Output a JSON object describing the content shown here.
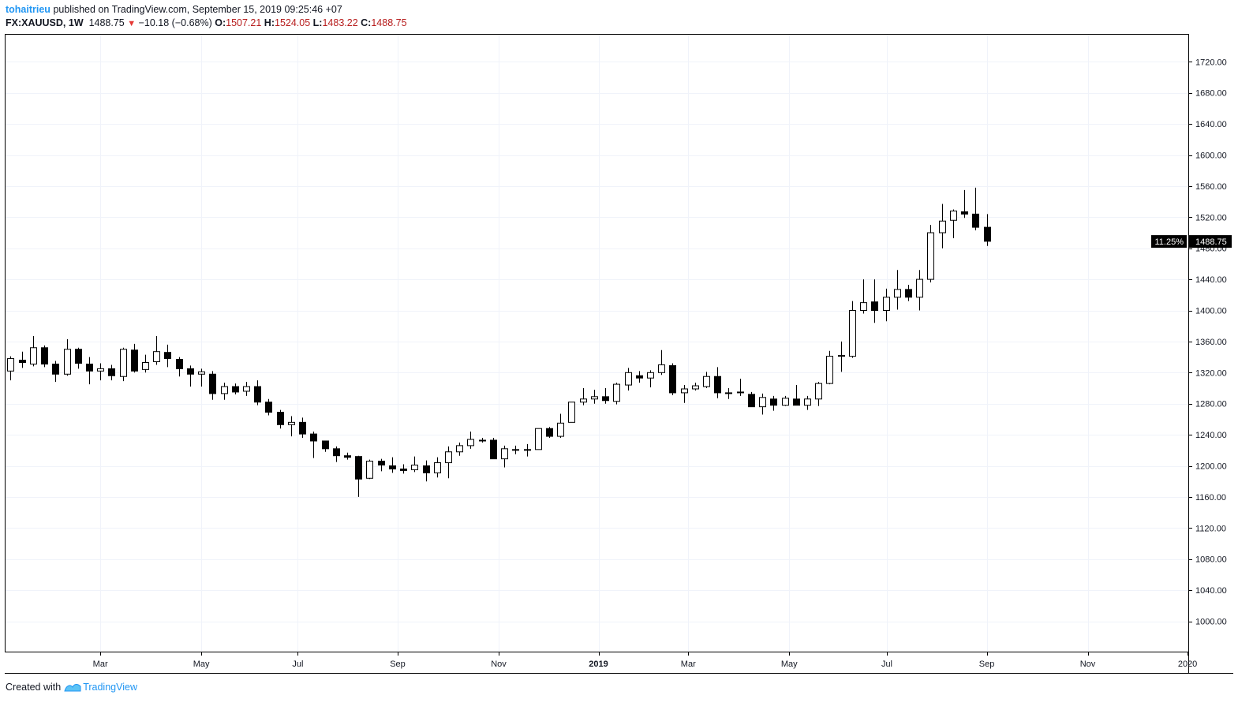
{
  "header": {
    "author": "tohaitrieu",
    "published": "published on TradingView.com, September 15, 2019 09:25:46 +07",
    "symbol": "FX:XAUUSD, 1W",
    "last": "1488.75",
    "change_arrow": "▼",
    "change": "−10.18 (−0.68%)",
    "o_label": "O:",
    "o": "1507.21",
    "h_label": "H:",
    "h": "1524.05",
    "l_label": "L:",
    "l": "1483.22",
    "c_label": "C:",
    "c": "1488.75"
  },
  "footer": {
    "created": "Created with",
    "brand": "TradingView"
  },
  "colors": {
    "up_fill": "#ffffff",
    "down_fill": "#000000",
    "wick": "#000000",
    "grid": "#f0f3fa",
    "author": "#2196f3",
    "ohlc_value": "#b71c1c",
    "price_label_bg": "#000000"
  },
  "chart_data": {
    "type": "candlestick",
    "interval": "1W",
    "ylim": [
      960,
      1760
    ],
    "yticks": [
      1000,
      1040,
      1080,
      1120,
      1160,
      1200,
      1240,
      1280,
      1320,
      1360,
      1400,
      1440,
      1480,
      1520,
      1560,
      1600,
      1640,
      1680,
      1720
    ],
    "ytick_labels": [
      "1000.00",
      "1040.00",
      "1080.00",
      "1120.00",
      "1160.00",
      "1200.00",
      "1240.00",
      "1280.00",
      "1320.00",
      "1360.00",
      "1400.00",
      "1440.00",
      "1480.00",
      "1520.00",
      "1560.00",
      "1600.00",
      "1640.00",
      "1680.00",
      "1720.00"
    ],
    "xticks": [
      {
        "label": "Mar",
        "week": 8,
        "bold": false
      },
      {
        "label": "May",
        "week": 17,
        "bold": false
      },
      {
        "label": "Jul",
        "week": 25.6,
        "bold": false
      },
      {
        "label": "Sep",
        "week": 34.5,
        "bold": false
      },
      {
        "label": "Nov",
        "week": 43.5,
        "bold": false
      },
      {
        "label": "2019",
        "week": 52.4,
        "bold": true
      },
      {
        "label": "Mar",
        "week": 60.4,
        "bold": false
      },
      {
        "label": "May",
        "week": 69.4,
        "bold": false
      },
      {
        "label": "Jul",
        "week": 78.1,
        "bold": false
      },
      {
        "label": "Sep",
        "week": 87,
        "bold": false
      },
      {
        "label": "Nov",
        "week": 96,
        "bold": false
      },
      {
        "label": "2020",
        "week": 104.9,
        "bold": false
      }
    ],
    "last_price": {
      "value": 1488.75,
      "label": "1488.75",
      "pct": "11.25%"
    },
    "candles": [
      [
        1322,
        1341,
        1310,
        1338
      ],
      [
        1336,
        1347,
        1326,
        1333
      ],
      [
        1331,
        1367,
        1328,
        1352
      ],
      [
        1352,
        1355,
        1327,
        1331
      ],
      [
        1331,
        1335,
        1308,
        1318
      ],
      [
        1318,
        1363,
        1316,
        1350
      ],
      [
        1350,
        1352,
        1325,
        1332
      ],
      [
        1331,
        1340,
        1305,
        1322
      ],
      [
        1322,
        1332,
        1310,
        1325
      ],
      [
        1325,
        1330,
        1310,
        1316
      ],
      [
        1315,
        1352,
        1309,
        1350
      ],
      [
        1349,
        1357,
        1320,
        1322
      ],
      [
        1324,
        1343,
        1320,
        1333
      ],
      [
        1334,
        1367,
        1330,
        1347
      ],
      [
        1346,
        1356,
        1327,
        1338
      ],
      [
        1337,
        1340,
        1315,
        1325
      ],
      [
        1325,
        1329,
        1302,
        1318
      ],
      [
        1318,
        1325,
        1302,
        1321
      ],
      [
        1318,
        1322,
        1285,
        1293
      ],
      [
        1293,
        1307,
        1285,
        1302
      ],
      [
        1302,
        1306,
        1292,
        1295
      ],
      [
        1296,
        1308,
        1290,
        1302
      ],
      [
        1302,
        1310,
        1278,
        1282
      ],
      [
        1282,
        1286,
        1265,
        1269
      ],
      [
        1269,
        1272,
        1248,
        1253
      ],
      [
        1253,
        1264,
        1238,
        1256
      ],
      [
        1256,
        1262,
        1236,
        1241
      ],
      [
        1241,
        1244,
        1210,
        1232
      ],
      [
        1232,
        1232,
        1218,
        1222
      ],
      [
        1222,
        1225,
        1205,
        1213
      ],
      [
        1213,
        1217,
        1208,
        1211
      ],
      [
        1212,
        1213,
        1160,
        1183
      ],
      [
        1184,
        1208,
        1183,
        1206
      ],
      [
        1206,
        1209,
        1193,
        1201
      ],
      [
        1200,
        1211,
        1191,
        1196
      ],
      [
        1196,
        1202,
        1190,
        1194
      ],
      [
        1195,
        1212,
        1192,
        1201
      ],
      [
        1200,
        1207,
        1180,
        1191
      ],
      [
        1191,
        1211,
        1185,
        1204
      ],
      [
        1204,
        1225,
        1184,
        1218
      ],
      [
        1218,
        1230,
        1213,
        1226
      ],
      [
        1226,
        1244,
        1222,
        1234
      ],
      [
        1233,
        1236,
        1230,
        1233
      ],
      [
        1233,
        1236,
        1212,
        1209
      ],
      [
        1209,
        1226,
        1198,
        1222
      ],
      [
        1220,
        1226,
        1215,
        1221
      ],
      [
        1221,
        1228,
        1212,
        1221
      ],
      [
        1221,
        1248,
        1221,
        1248
      ],
      [
        1248,
        1250,
        1236,
        1238
      ],
      [
        1238,
        1267,
        1236,
        1255
      ],
      [
        1256,
        1282,
        1256,
        1282
      ],
      [
        1282,
        1300,
        1278,
        1286
      ],
      [
        1286,
        1298,
        1280,
        1289
      ],
      [
        1289,
        1300,
        1280,
        1284
      ],
      [
        1283,
        1307,
        1279,
        1305
      ],
      [
        1304,
        1326,
        1297,
        1320
      ],
      [
        1316,
        1322,
        1307,
        1313
      ],
      [
        1313,
        1323,
        1301,
        1320
      ],
      [
        1320,
        1349,
        1317,
        1330
      ],
      [
        1329,
        1332,
        1291,
        1294
      ],
      [
        1294,
        1304,
        1281,
        1299
      ],
      [
        1299,
        1307,
        1297,
        1303
      ],
      [
        1302,
        1321,
        1300,
        1315
      ],
      [
        1315,
        1327,
        1287,
        1294
      ],
      [
        1294,
        1300,
        1286,
        1294
      ],
      [
        1294,
        1312,
        1290,
        1295
      ],
      [
        1292,
        1295,
        1276,
        1276
      ],
      [
        1276,
        1293,
        1266,
        1288
      ],
      [
        1286,
        1290,
        1271,
        1278
      ],
      [
        1278,
        1290,
        1277,
        1287
      ],
      [
        1286,
        1304,
        1281,
        1278
      ],
      [
        1278,
        1290,
        1272,
        1286
      ],
      [
        1286,
        1308,
        1277,
        1306
      ],
      [
        1306,
        1348,
        1305,
        1341
      ],
      [
        1341,
        1360,
        1321,
        1342
      ],
      [
        1341,
        1412,
        1339,
        1400
      ],
      [
        1400,
        1440,
        1396,
        1410
      ],
      [
        1411,
        1440,
        1384,
        1400
      ],
      [
        1400,
        1428,
        1386,
        1417
      ],
      [
        1417,
        1452,
        1401,
        1427
      ],
      [
        1427,
        1433,
        1412,
        1417
      ],
      [
        1417,
        1452,
        1400,
        1440
      ],
      [
        1440,
        1510,
        1436,
        1500
      ],
      [
        1500,
        1537,
        1480,
        1515
      ],
      [
        1516,
        1530,
        1493,
        1528
      ],
      [
        1527,
        1555,
        1519,
        1524
      ],
      [
        1524,
        1558,
        1503,
        1507
      ],
      [
        1507,
        1524,
        1483,
        1489
      ]
    ]
  }
}
